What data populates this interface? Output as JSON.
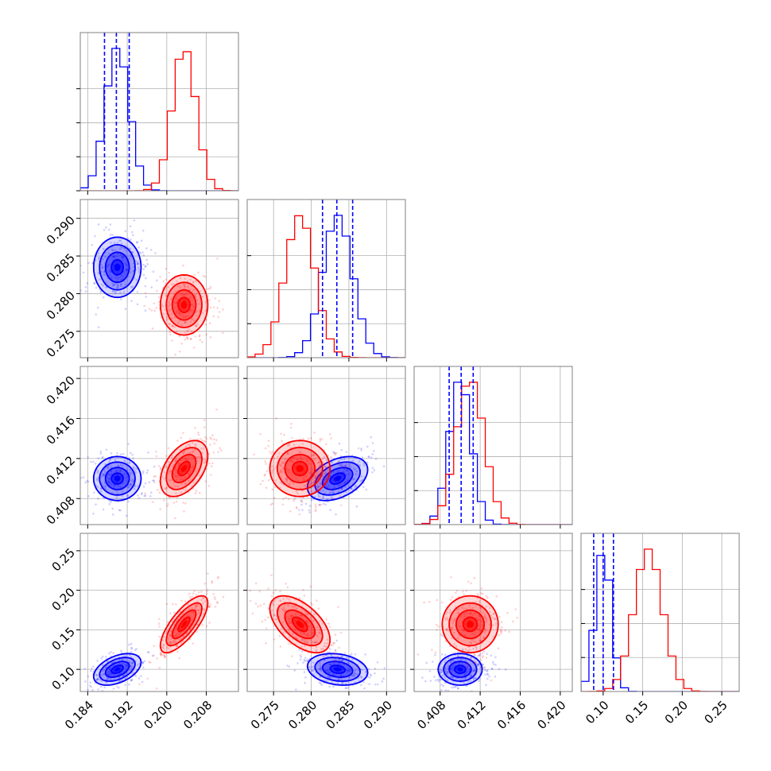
{
  "chart_data": {
    "type": "corner",
    "colors": {
      "blue": "#0000ff",
      "red": "#ff0000",
      "grid": "#b0b0b0",
      "frame": "#808080"
    },
    "series": [
      {
        "color": "blue",
        "mean": [
          0.19,
          0.2835,
          0.41,
          0.1
        ],
        "std": [
          0.0024,
          0.002,
          0.0011,
          0.01
        ],
        "corr": [
          [
            1,
            0,
            0,
            0.45
          ],
          [
            0,
            1,
            0.4,
            -0.2
          ],
          [
            0,
            0.4,
            1,
            0
          ],
          [
            0.45,
            -0.2,
            0,
            1
          ]
        ]
      },
      {
        "color": "red",
        "mean": [
          0.2035,
          0.2785,
          0.411,
          0.157
        ],
        "std": [
          0.0024,
          0.002,
          0.0014,
          0.018
        ],
        "corr": [
          [
            1,
            0,
            0.45,
            0.75
          ],
          [
            0,
            1,
            0,
            -0.55
          ],
          [
            0.45,
            0,
            1,
            0
          ],
          [
            0.75,
            -0.55,
            0,
            1
          ]
        ]
      }
    ],
    "quantile_lines": [
      [
        0.1874,
        0.1898,
        0.1924
      ],
      [
        0.2815,
        0.2834,
        0.2855
      ],
      [
        0.4089,
        0.4101,
        0.4113
      ],
      [
        0.088,
        0.1,
        0.113
      ]
    ],
    "axes": [
      {
        "range": [
          0.1825,
          0.2145
        ],
        "ticks": [
          0.184,
          0.192,
          0.2,
          0.208
        ],
        "tick_labels": [
          "0.184",
          "0.192",
          "0.200",
          "0.208"
        ]
      },
      {
        "range": [
          0.2715,
          0.2925
        ],
        "ticks": [
          0.275,
          0.28,
          0.285,
          0.29
        ],
        "tick_labels": [
          "0.275",
          "0.280",
          "0.285",
          "0.290"
        ]
      },
      {
        "range": [
          0.4054,
          0.4212
        ],
        "ticks": [
          0.408,
          0.412,
          0.416,
          0.42
        ],
        "tick_labels": [
          "0.408",
          "0.412",
          "0.416",
          "0.420"
        ]
      },
      {
        "range": [
          0.072,
          0.272
        ],
        "ticks": [
          0.1,
          0.15,
          0.2,
          0.25
        ],
        "tick_labels": [
          "0.10",
          "0.15",
          "0.20",
          "0.25"
        ]
      }
    ],
    "grid": true,
    "contour_levels": [
      0.5,
      1.0,
      1.5,
      2.0
    ]
  }
}
